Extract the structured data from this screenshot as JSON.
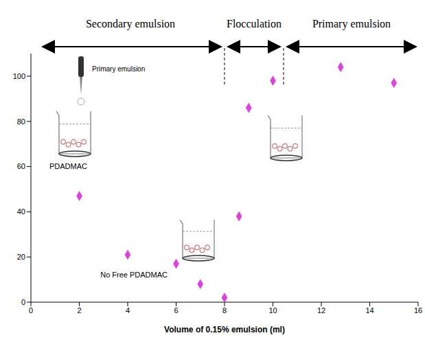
{
  "chart_data": {
    "type": "scatter",
    "x": [
      2,
      4,
      6,
      7,
      8,
      8.6,
      9,
      10,
      12.8,
      15
    ],
    "values": [
      47,
      21,
      17,
      8,
      2,
      38,
      86,
      98,
      104,
      97
    ],
    "color": "#e040e0",
    "marker": "diamond",
    "xlabel": "Volume of 0.15% emulsion (ml)",
    "xlim": [
      0,
      16
    ],
    "xticks": [
      0,
      2,
      4,
      6,
      8,
      10,
      12,
      14,
      16
    ],
    "ylim": [
      0,
      110
    ],
    "yticks": [
      0,
      20,
      40,
      60,
      80,
      100
    ],
    "grid": false,
    "annotations": [
      "Secondary emulsion",
      "Flocculation",
      "Primary emulsion",
      "Primary emulsion",
      "PDADMAC",
      "No Free PDADMAC"
    ]
  }
}
